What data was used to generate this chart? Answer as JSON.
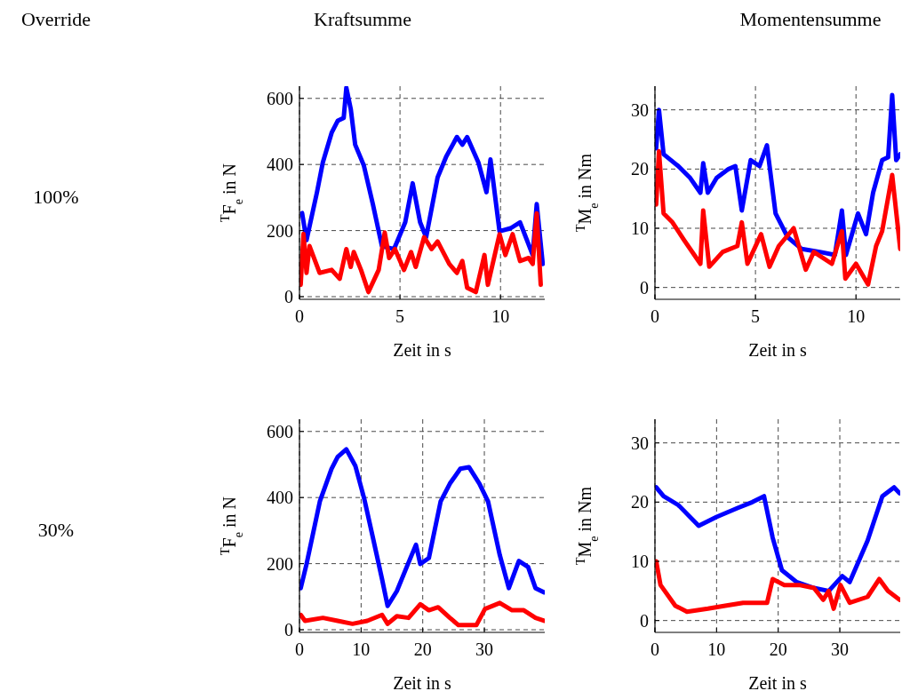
{
  "chart_data": [
    {
      "type": "line",
      "title": "Kraftsumme",
      "xlabel": "Zeit in s",
      "ylabel": "$^{T}$F$_{e}$ in N",
      "annotations": [
        "Override",
        "100%"
      ],
      "xlim": [
        0,
        12.2
      ],
      "xticks": [
        0,
        5,
        10
      ],
      "ylim": [
        -8,
        637
      ],
      "yticks": [
        0,
        200,
        400,
        600
      ],
      "grid": true,
      "line_style": "solid",
      "series": [
        {
          "color": "#0000ff",
          "x": [
            0.13,
            0.35,
            0.87,
            1.16,
            1.6,
            1.9,
            2.2,
            2.33,
            2.55,
            2.77,
            3.2,
            3.65,
            4.1,
            4.7,
            5.26,
            5.63,
            6.0,
            6.3,
            6.87,
            7.3,
            7.83,
            8.1,
            8.34,
            8.9,
            9.3,
            9.5,
            9.95,
            10.5,
            10.97,
            11.6,
            11.8,
            12.1
          ],
          "values": [
            253,
            171,
            316,
            406,
            496,
            532,
            541,
            632,
            568,
            460,
            397,
            280,
            153,
            144,
            225,
            343,
            225,
            180,
            361,
            424,
            483,
            460,
            483,
            406,
            316,
            415,
            198,
            207,
            225,
            126,
            280,
            99
          ]
        },
        {
          "color": "#ff0000",
          "x": [
            0.06,
            0.2,
            0.35,
            0.5,
            1.0,
            1.6,
            2.0,
            2.33,
            2.55,
            2.7,
            3.06,
            3.43,
            3.94,
            4.24,
            4.46,
            4.75,
            5.2,
            5.55,
            5.78,
            6.2,
            6.57,
            6.87,
            7.45,
            7.83,
            8.1,
            8.34,
            8.77,
            9.2,
            9.37,
            9.95,
            10.24,
            10.6,
            10.97,
            11.4,
            11.6,
            11.8,
            12.0
          ],
          "values": [
            36,
            190,
            72,
            153,
            72,
            81,
            54,
            144,
            90,
            135,
            81,
            14,
            81,
            194,
            117,
            144,
            81,
            135,
            90,
            180,
            144,
            167,
            99,
            72,
            108,
            27,
            14,
            126,
            36,
            189,
            126,
            189,
            108,
            117,
            99,
            252,
            36
          ]
        }
      ]
    },
    {
      "type": "line",
      "title": "Momentensumme",
      "xlabel": "Zeit in s",
      "ylabel": "$^{T}$M$_{e}$ in Nm",
      "xlim": [
        0,
        12.2
      ],
      "xticks": [
        0,
        5,
        10
      ],
      "ylim": [
        -2,
        34
      ],
      "yticks": [
        0,
        10,
        20,
        30
      ],
      "grid": true,
      "line_style": "solid",
      "series": [
        {
          "color": "#0000ff",
          "x": [
            0.06,
            0.2,
            0.43,
            1.16,
            1.75,
            2.26,
            2.4,
            2.63,
            3.07,
            3.66,
            4.0,
            4.32,
            4.76,
            5.2,
            5.57,
            6.0,
            6.6,
            7.3,
            8.2,
            8.95,
            9.3,
            9.5,
            10.1,
            10.5,
            10.85,
            11.3,
            11.6,
            11.8,
            12.0,
            12.2
          ],
          "values": [
            23.5,
            30,
            22.5,
            20.5,
            18.5,
            16,
            21,
            16,
            18.5,
            20,
            20.5,
            13,
            21.5,
            20.5,
            24,
            12.5,
            8.5,
            6.5,
            6,
            5.5,
            13,
            5.5,
            12.5,
            9,
            16,
            21.5,
            22,
            32.5,
            21.5,
            22.5
          ]
        },
        {
          "color": "#ff0000",
          "x": [
            0.06,
            0.2,
            0.43,
            0.87,
            1.45,
            2.26,
            2.4,
            2.7,
            3.37,
            4.1,
            4.32,
            4.6,
            5.28,
            5.7,
            6.16,
            6.9,
            7.5,
            7.9,
            8.8,
            9.3,
            9.47,
            10.0,
            10.6,
            11.0,
            11.3,
            11.8,
            12.2
          ],
          "values": [
            14,
            23,
            12.5,
            11,
            8,
            4,
            13,
            3.5,
            6,
            7,
            11,
            4,
            9,
            3.5,
            7,
            10,
            3,
            6,
            4,
            9.5,
            1.5,
            4,
            0.5,
            7,
            9.5,
            19,
            6.5
          ]
        }
      ]
    },
    {
      "type": "line",
      "xlabel": "Zeit in s",
      "ylabel": "$^{T}$F$_{e}$ in N",
      "annotations": [
        "30%"
      ],
      "xlim": [
        0,
        39.8
      ],
      "xticks": [
        0,
        10,
        20,
        30
      ],
      "ylim": [
        -8,
        637
      ],
      "yticks": [
        0,
        200,
        400,
        600
      ],
      "grid": true,
      "line_style": "solid",
      "series": [
        {
          "color": "#0000ff",
          "x": [
            0.2,
            1.15,
            3.3,
            5.2,
            6.2,
            7.6,
            9.06,
            10.5,
            11.9,
            13.4,
            14.3,
            15.8,
            17.4,
            18.9,
            19.6,
            21.0,
            22.9,
            24.4,
            26.1,
            27.5,
            29.2,
            30.6,
            32.5,
            33.97,
            35.6,
            37.1,
            38.3,
            39.7
          ],
          "values": [
            126,
            199,
            388,
            487,
            523,
            546,
            496,
            397,
            280,
            153,
            72,
            117,
            190,
            257,
            199,
            217,
            388,
            442,
            487,
            492,
            442,
            388,
            226,
            126,
            208,
            190,
            126,
            113
          ]
        },
        {
          "color": "#ff0000",
          "x": [
            0.2,
            0.9,
            3.8,
            6.2,
            8.6,
            11,
            13.4,
            14.3,
            15.8,
            17.7,
            19.6,
            21,
            22.5,
            24.4,
            25.8,
            28.7,
            30.1,
            32.5,
            34.5,
            36.4,
            38.3,
            39.7
          ],
          "values": [
            45,
            27,
            36,
            27,
            18,
            27,
            45,
            18,
            41,
            36,
            77,
            59,
            68,
            36,
            14,
            14,
            63,
            81,
            59,
            59,
            36,
            27
          ]
        }
      ]
    },
    {
      "type": "line",
      "xlabel": "Zeit in s",
      "ylabel": "$^{T}$M$_{e}$ in Nm",
      "xlim": [
        0,
        39.8
      ],
      "xticks": [
        0,
        10,
        20,
        30
      ],
      "ylim": [
        -2,
        34
      ],
      "yticks": [
        0,
        10,
        20,
        30
      ],
      "grid": true,
      "line_style": "solid",
      "series": [
        {
          "color": "#0000ff",
          "x": [
            0.2,
            1.4,
            3.8,
            7.1,
            10,
            13.4,
            15.8,
            17.7,
            19.1,
            20.6,
            23,
            25.8,
            28.2,
            30.4,
            31.6,
            34.5,
            36.9,
            38.8,
            39.7
          ],
          "values": [
            22.5,
            21,
            19.5,
            16,
            17.5,
            19,
            20,
            21,
            14,
            8.5,
            6.5,
            5.5,
            5,
            7.5,
            6.5,
            13.5,
            21,
            22.5,
            21.5
          ]
        },
        {
          "color": "#ff0000",
          "x": [
            0.2,
            0.9,
            3.3,
            5.2,
            8.6,
            11.4,
            14.3,
            18.2,
            19.1,
            21,
            23.4,
            25.8,
            27.3,
            28.2,
            29,
            30.1,
            31.6,
            34.5,
            36.4,
            37.8,
            39.7
          ],
          "values": [
            10,
            6,
            2.5,
            1.5,
            2,
            2.5,
            3,
            3,
            7,
            6,
            6,
            5.5,
            3.5,
            5,
            2,
            6,
            3,
            4,
            7,
            5,
            3.5
          ]
        }
      ]
    }
  ]
}
